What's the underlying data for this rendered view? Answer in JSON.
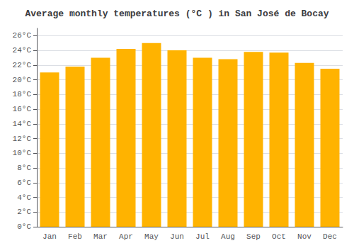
{
  "chart_data": {
    "type": "bar",
    "title": "Average monthly temperatures (°C ) in San José de Bocay",
    "categories": [
      "Jan",
      "Feb",
      "Mar",
      "Apr",
      "May",
      "Jun",
      "Jul",
      "Aug",
      "Sep",
      "Oct",
      "Nov",
      "Dec"
    ],
    "values": [
      21.0,
      21.8,
      23.0,
      24.2,
      25.0,
      24.0,
      23.0,
      22.8,
      23.8,
      23.7,
      22.3,
      21.5
    ],
    "color": "#FFB300",
    "ylim": [
      0,
      27
    ],
    "yticks": [
      {
        "value": 0,
        "label": "0°C"
      },
      {
        "value": 2,
        "label": "2°C"
      },
      {
        "value": 4,
        "label": "4°C"
      },
      {
        "value": 6,
        "label": "6°C"
      },
      {
        "value": 8,
        "label": "8°C"
      },
      {
        "value": 10,
        "label": "10°C"
      },
      {
        "value": 12,
        "label": "12°C"
      },
      {
        "value": 14,
        "label": "14°C"
      },
      {
        "value": 16,
        "label": "16°C"
      },
      {
        "value": 18,
        "label": "18°C"
      },
      {
        "value": 20,
        "label": "20°C"
      },
      {
        "value": 22,
        "label": "22°C"
      },
      {
        "value": 24,
        "label": "24°C"
      },
      {
        "value": 26,
        "label": "26°C"
      }
    ],
    "grid": true
  }
}
